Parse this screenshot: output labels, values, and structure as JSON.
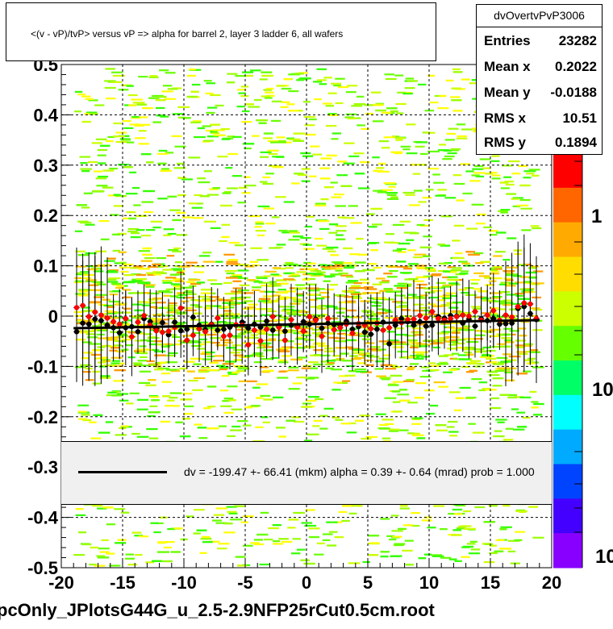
{
  "title": "<(v - vP)/tvP> versus   vP => alpha for barrel 2, layer 3 ladder 6, all wafers",
  "stats": {
    "name": "dvOvertvPvP3006",
    "rows": [
      {
        "label": "Entries",
        "value": "23282"
      },
      {
        "label": "Mean x",
        "value": "0.2022"
      },
      {
        "label": "Mean y",
        "value": "-0.0188"
      },
      {
        "label": "RMS x",
        "value": "10.51"
      },
      {
        "label": "RMS y",
        "value": "0.1894"
      }
    ]
  },
  "fit_legend": "dv = -199.47 +- 66.41 (mkm) alpha =    0.39 +-  0.64 (mrad) prob = 1.000",
  "footer": "pcOnly_JPlotsG44G_u_2.5-2.9NFP25rCut0.5cm.root",
  "colors": {
    "heatmap": [
      "#ffff00",
      "#ccff00",
      "#99ff00",
      "#66ff00",
      "#33ff00",
      "#ff9900",
      "#ffcc00"
    ],
    "black_points": "#000000",
    "red_points": "#ff0000",
    "fit_line": "#000000",
    "palette": [
      "#ff0000",
      "#ff6600",
      "#ffaa00",
      "#ffdd00",
      "#ccff00",
      "#66ff00",
      "#00ff66",
      "#00ffff",
      "#00aaff",
      "#0044ff",
      "#4400ff",
      "#8800ff"
    ]
  },
  "chart_data": {
    "type": "scatter",
    "xlim": [
      -20,
      20
    ],
    "ylim": [
      -0.5,
      0.5
    ],
    "xticks": [
      -20,
      -15,
      -10,
      -5,
      0,
      5,
      10,
      15,
      20
    ],
    "yticks": [
      -0.5,
      -0.4,
      -0.3,
      -0.2,
      -0.1,
      0,
      0.1,
      0.2,
      0.3,
      0.4,
      0.5
    ],
    "xtick_labels": [
      "-20",
      "-15",
      "-10",
      "-5",
      "0",
      "5",
      "10",
      "15",
      "20"
    ],
    "ytick_labels": [
      "-0.5",
      "-0.4",
      "-0.3",
      "-0.2",
      "-0.1",
      "0",
      "0.1",
      "0.2",
      "0.3",
      "0.4",
      "0.5"
    ],
    "z_scale": "log",
    "z_tick_labels": [
      "1",
      "10",
      "10"
    ],
    "grid": true,
    "fit": {
      "x": [
        -19,
        19
      ],
      "y": [
        -0.024,
        -0.008
      ]
    },
    "series": [
      {
        "color": "black",
        "x": [
          -18.75,
          -18.25,
          -17.75,
          -17.25,
          -16.75,
          -16.25,
          -15.75,
          -15.25,
          -14.75,
          -14.25,
          -13.75,
          -13.25,
          -12.75,
          -12.25,
          -11.75,
          -11.25,
          -10.75,
          -10.25,
          -9.75,
          -9.25,
          -8.75,
          -8.25,
          -7.75,
          -7.25,
          -6.75,
          -6.25,
          -5.75,
          -5.25,
          -4.75,
          -4.25,
          -3.75,
          -3.25,
          -2.75,
          -2.25,
          -1.75,
          -1.25,
          -0.75,
          -0.25,
          0.25,
          0.75,
          1.25,
          1.75,
          2.25,
          2.75,
          3.25,
          3.75,
          4.25,
          4.75,
          5.25,
          5.75,
          6.25,
          6.75,
          7.25,
          7.75,
          8.25,
          8.75,
          9.25,
          9.75,
          10.25,
          10.75,
          11.25,
          11.75,
          12.25,
          12.75,
          13.25,
          13.75,
          14.25,
          14.75,
          15.25,
          15.75,
          16.25,
          16.75,
          17.25,
          17.75,
          18.25,
          18.75
        ],
        "y": [
          -0.031,
          -0.014,
          -0.016,
          -0.006,
          -0.009,
          -0.018,
          -0.023,
          -0.033,
          -0.023,
          -0.021,
          -0.031,
          -0.005,
          -0.011,
          -0.025,
          -0.013,
          -0.037,
          -0.012,
          -0.029,
          -0.026,
          -0.002,
          -0.018,
          -0.027,
          -0.016,
          -0.028,
          -0.026,
          -0.022,
          -0.018,
          -0.012,
          -0.024,
          -0.016,
          -0.022,
          -0.01,
          -0.028,
          -0.019,
          -0.03,
          -0.018,
          -0.02,
          -0.011,
          -0.016,
          -0.006,
          -0.024,
          -0.014,
          -0.017,
          -0.018,
          -0.01,
          -0.026,
          -0.021,
          -0.032,
          -0.036,
          -0.026,
          -0.012,
          -0.055,
          -0.018,
          -0.005,
          -0.011,
          -0.018,
          -0.011,
          -0.02,
          -0.018,
          -0.001,
          -0.004,
          0.001,
          0.0,
          -0.014,
          -0.006,
          -0.02,
          -0.005,
          -0.009,
          -0.005,
          -0.016,
          -0.015,
          -0.014,
          0.015,
          0.019,
          0.005,
          -0.007
        ]
      },
      {
        "color": "red",
        "x": [
          -18.75,
          -18.25,
          -17.75,
          -17.25,
          -16.75,
          -16.25,
          -15.75,
          -15.25,
          -14.75,
          -14.25,
          -13.75,
          -13.25,
          -12.75,
          -12.25,
          -11.75,
          -11.25,
          -10.75,
          -10.25,
          -9.75,
          -9.25,
          -8.75,
          -8.25,
          -7.75,
          -7.25,
          -6.75,
          -6.25,
          -5.75,
          -5.25,
          -4.75,
          -4.25,
          -3.75,
          -3.25,
          -2.75,
          -2.25,
          -1.75,
          -1.25,
          -0.75,
          -0.25,
          0.25,
          0.75,
          1.25,
          1.75,
          2.25,
          2.75,
          3.25,
          3.75,
          4.25,
          4.75,
          5.25,
          5.75,
          6.25,
          6.75,
          7.25,
          7.75,
          8.25,
          8.75,
          9.25,
          9.75,
          10.25,
          10.75,
          11.25,
          11.75,
          12.25,
          12.75,
          13.25,
          13.75,
          14.25,
          14.75,
          15.25,
          15.75,
          16.25,
          16.75,
          17.25,
          17.75,
          18.25,
          18.75
        ],
        "y": [
          0.017,
          0.021,
          -0.001,
          0.008,
          0.002,
          -0.004,
          -0.011,
          -0.016,
          -0.005,
          -0.041,
          -0.012,
          0.001,
          -0.018,
          -0.029,
          -0.032,
          -0.03,
          -0.022,
          0.016,
          -0.048,
          -0.038,
          -0.025,
          -0.031,
          -0.017,
          -0.004,
          -0.04,
          -0.038,
          -0.017,
          -0.018,
          -0.057,
          -0.028,
          -0.049,
          -0.026,
          -0.001,
          -0.022,
          -0.048,
          -0.007,
          -0.022,
          -0.03,
          -0.001,
          -0.008,
          -0.04,
          -0.005,
          -0.027,
          -0.023,
          -0.016,
          -0.034,
          -0.015,
          -0.018,
          -0.025,
          -0.014,
          -0.028,
          -0.023,
          -0.008,
          -0.013,
          -0.007,
          -0.006,
          0.001,
          -0.004,
          0.009,
          -0.005,
          -0.008,
          -0.005,
          -0.001,
          0.002,
          0.0,
          0.009,
          -0.008,
          0.002,
          0.011,
          -0.008,
          0.002,
          -0.002,
          0.019,
          0.026,
          0.024,
          -0.005
        ]
      }
    ]
  }
}
